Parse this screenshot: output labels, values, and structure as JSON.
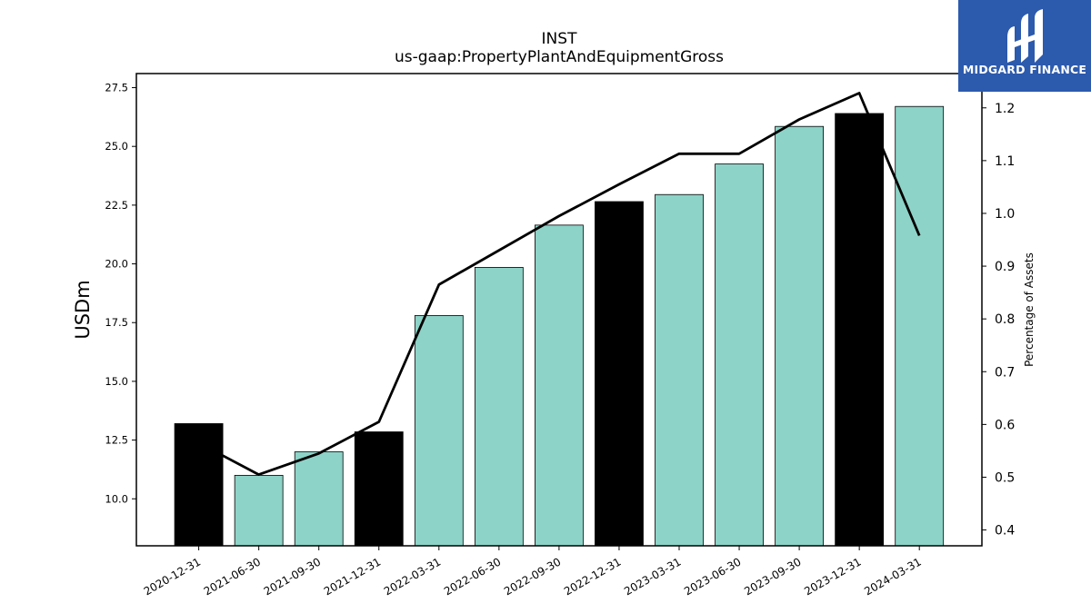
{
  "brand": {
    "name": "MIDGARD FINANCE",
    "logo_icon": "midgard-logo-icon",
    "background_color": "#2c5aad"
  },
  "chart_data": {
    "type": "bar",
    "title": "INST",
    "subtitle": "us-gaap:PropertyPlantAndEquipmentGross",
    "ylabel": "USDm",
    "y2label": "Percentage of Assets",
    "ylim": [
      8.0,
      28.1
    ],
    "y2lim": [
      0.37,
      1.265
    ],
    "yticks": [
      10.0,
      12.5,
      15.0,
      17.5,
      20.0,
      22.5,
      25.0,
      27.5
    ],
    "y2ticks": [
      0.4,
      0.5,
      0.6,
      0.7,
      0.8,
      0.9,
      1.0,
      1.1,
      1.2
    ],
    "categories": [
      "2020-12-31",
      "2021-06-30",
      "2021-09-30",
      "2021-12-31",
      "2022-03-31",
      "2022-06-30",
      "2022-09-30",
      "2022-12-31",
      "2023-03-31",
      "2023-06-30",
      "2023-09-30",
      "2023-12-31",
      "2024-03-31"
    ],
    "series": [
      {
        "axis": "left",
        "type": "bar",
        "values": [
          13.2,
          11.0,
          12.0,
          12.85,
          17.8,
          19.85,
          21.65,
          22.65,
          22.95,
          24.25,
          25.85,
          26.4,
          26.7
        ],
        "colors": [
          "#000000",
          "#8dd3c7",
          "#8dd3c7",
          "#000000",
          "#8dd3c7",
          "#8dd3c7",
          "#8dd3c7",
          "#000000",
          "#8dd3c7",
          "#8dd3c7",
          "#8dd3c7",
          "#000000",
          "#8dd3c7"
        ]
      },
      {
        "axis": "right",
        "type": "line",
        "color": "#000000",
        "values": [
          0.565,
          0.505,
          0.545,
          0.605,
          0.865,
          0.93,
          0.995,
          1.055,
          1.113,
          1.113,
          1.178,
          1.228,
          0.958
        ]
      }
    ],
    "grid": false,
    "legend": "none"
  }
}
